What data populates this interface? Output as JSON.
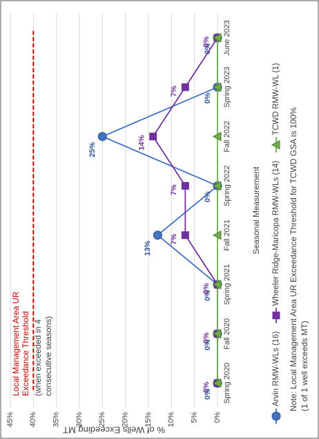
{
  "chart_data": {
    "type": "line",
    "y_label": "% of Wells Exceeding MT",
    "x_label": "Seasonal Measurement",
    "categories": [
      "Spring 2020",
      "Fall 2020",
      "Spring 2021",
      "Fall 2021",
      "Spring 2022",
      "Fall 2022",
      "Spring 2023",
      "June 2023"
    ],
    "series": [
      {
        "name": "Arvin RMW-WLs (16)",
        "color": "#4472c4",
        "marker": "circle",
        "values": [
          0,
          0,
          0,
          13,
          0,
          25,
          0,
          0
        ],
        "value_labels": [
          "0%",
          "0%",
          "0%",
          "13%",
          "0%",
          "25%",
          "0%",
          "0%"
        ]
      },
      {
        "name": "Wheeler Ridge-Maricopa RMW-WLs (14)",
        "color": "#7030a0",
        "marker": "square",
        "values": [
          0,
          0,
          0,
          7,
          7,
          14,
          7,
          0
        ],
        "value_labels": [
          "0%",
          "0%",
          "0%",
          "7%",
          "7%",
          "14%",
          "7%",
          "0%"
        ]
      },
      {
        "name": "TCWD RMW-WL (1)",
        "color": "#70ad47",
        "marker": "triangle",
        "values": [
          0,
          0,
          0,
          0,
          0,
          0,
          0,
          0
        ]
      }
    ],
    "ylim": [
      0,
      45
    ],
    "yticks": [
      {
        "value": 0,
        "label": "0%"
      },
      {
        "value": 5,
        "label": "5%"
      },
      {
        "value": 10,
        "label": "10%"
      },
      {
        "value": 15,
        "label": "15%"
      },
      {
        "value": 20,
        "label": "20%"
      },
      {
        "value": 25,
        "label": "25%"
      },
      {
        "value": 30,
        "label": "30%"
      },
      {
        "value": 35,
        "label": "35%"
      },
      {
        "value": 40,
        "label": "40%"
      },
      {
        "value": 45,
        "label": "45%"
      }
    ],
    "grid": true,
    "threshold": {
      "value": 40,
      "color": "#c00000",
      "label_lines": [
        "Local Management Area UR",
        "Exceedance Threshold"
      ],
      "note_lines": [
        "(when exceeded in 4",
        "consecutive seasons)"
      ]
    },
    "note_lines": [
      "Note: Local Management Area UR Exceedance Threshold for TCWD GSA is 100%",
      "(1 of 1 well exceeds MT)"
    ]
  }
}
